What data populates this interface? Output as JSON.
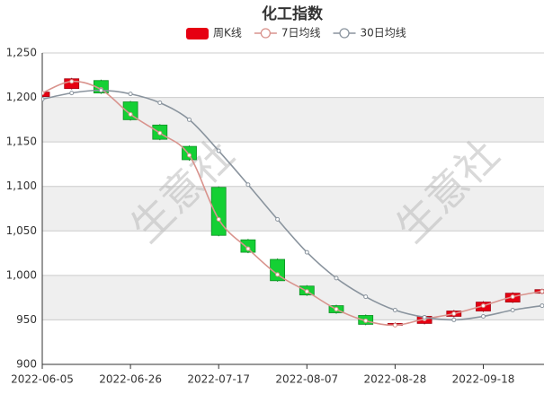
{
  "chart_data": {
    "type": "candlestick",
    "title": "化工指数",
    "watermark": "生意社",
    "categories": [
      "2022-06-05",
      null,
      null,
      "2022-06-26",
      null,
      null,
      "2022-07-17",
      null,
      null,
      "2022-08-07",
      null,
      null,
      "2022-08-28",
      null,
      null,
      "2022-09-18",
      null,
      null
    ],
    "ylim": [
      900,
      1250
    ],
    "yticks": [
      900,
      950,
      {
        "value": 1000,
        "label": "1,000"
      },
      {
        "value": 1050,
        "label": "1,050"
      },
      {
        "value": 1100,
        "label": "1,100"
      },
      {
        "value": 1150,
        "label": "1,150"
      },
      {
        "value": 1200,
        "label": "1,200"
      },
      {
        "value": 1250,
        "label": "1,250"
      }
    ],
    "grid": true,
    "split_area": true,
    "series": [
      {
        "name": "周K线",
        "type": "candlestick",
        "color": "#e60012",
        "down_color": "#14d034",
        "open": [
          1201,
          1210,
          1219,
          1195,
          1169,
          1145,
          1099,
          1040,
          1018,
          988,
          966,
          955,
          944,
          946,
          954,
          960,
          970,
          980
        ],
        "close": [
          1206,
          1221,
          1205,
          1175,
          1153,
          1130,
          1045,
          1026,
          994,
          978,
          958,
          945,
          946,
          954,
          960,
          970,
          980,
          984
        ],
        "low": [
          1200,
          1209,
          1204,
          1174,
          1152,
          1129,
          1044,
          1025,
          993,
          977,
          957,
          944,
          943,
          945,
          953,
          959,
          969,
          979
        ],
        "high": [
          1207,
          1222,
          1220,
          1196,
          1170,
          1146,
          1100,
          1041,
          1019,
          989,
          967,
          956,
          947,
          955,
          961,
          971,
          981,
          985
        ]
      },
      {
        "name": "7日均线",
        "type": "line",
        "color": "#d9938d",
        "values": [
          1205,
          1218,
          1209,
          1181,
          1160,
          1135,
          1063,
          1030,
          1001,
          982,
          962,
          949,
          944,
          951,
          957,
          966,
          976,
          982
        ]
      },
      {
        "name": "30日均线",
        "type": "line",
        "color": "#8a949e",
        "values": [
          1198,
          1205,
          1208,
          1204,
          1194,
          1175,
          1140,
          1102,
          1063,
          1026,
          997,
          976,
          961,
          953,
          950,
          954,
          961,
          966
        ]
      }
    ]
  }
}
